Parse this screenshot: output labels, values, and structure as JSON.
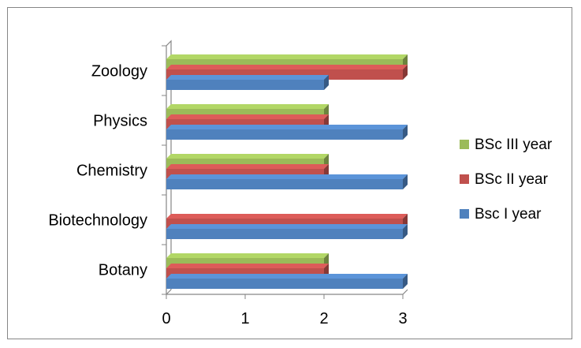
{
  "chart_data": {
    "type": "bar",
    "orientation": "horizontal",
    "style": "3d",
    "categories": [
      "Botany",
      "Biotechnology",
      "Chemistry",
      "Physics",
      "Zoology"
    ],
    "series": [
      {
        "name": "Bsc I year",
        "values": [
          3,
          3,
          3,
          3,
          2
        ],
        "color": "#4f81bd"
      },
      {
        "name": "BSc II year",
        "values": [
          2,
          3,
          2,
          2,
          3
        ],
        "color": "#c0504d"
      },
      {
        "name": "BSc III year",
        "values": [
          2,
          0,
          2,
          2,
          3
        ],
        "color": "#9bbb59"
      }
    ],
    "x_ticks": [
      "0",
      "1",
      "2",
      "3"
    ],
    "xlim": [
      0,
      3
    ],
    "title": "",
    "xlabel": "",
    "ylabel": "",
    "grid": false,
    "legend_position": "right"
  }
}
